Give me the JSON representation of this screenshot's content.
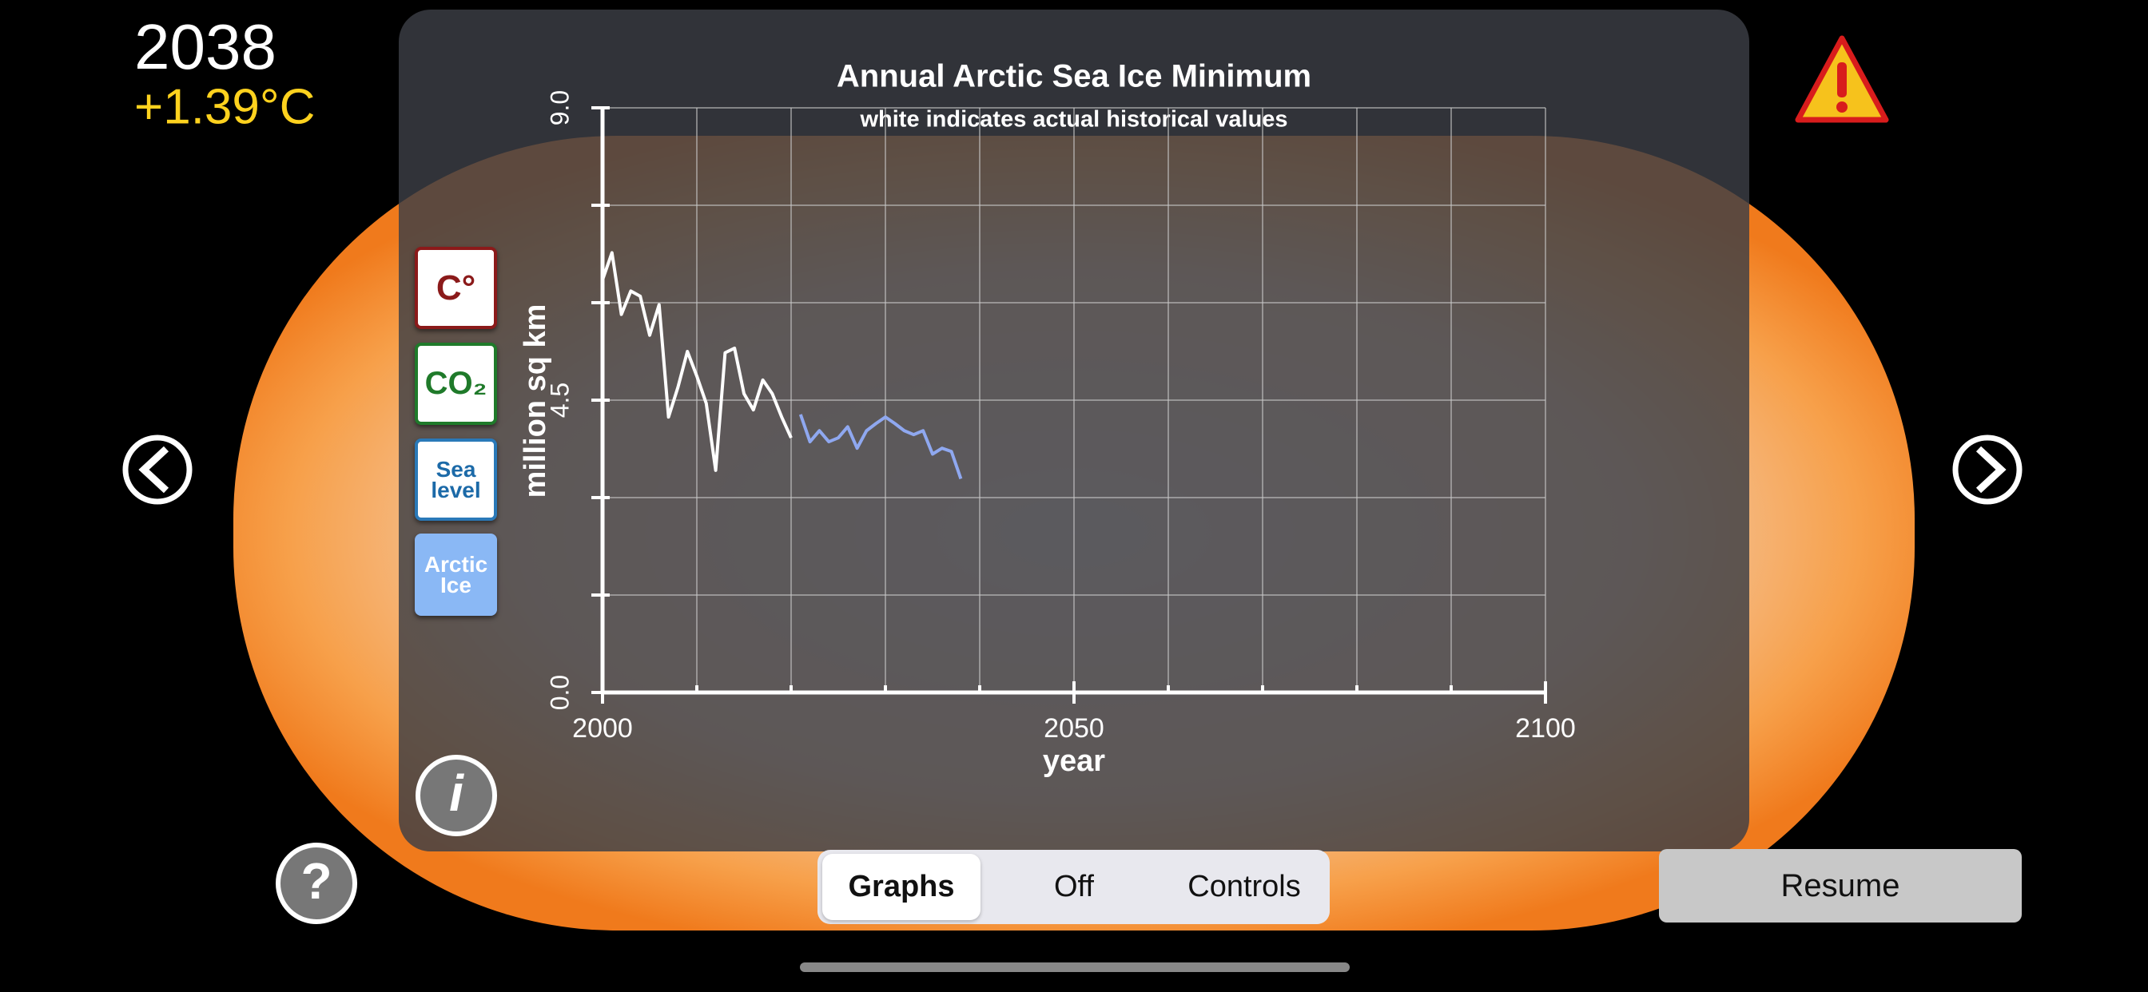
{
  "status": {
    "year": "2038",
    "temperature": "+1.39°C"
  },
  "side_buttons": [
    "C°",
    "CO₂",
    "Sea level",
    "Arctic Ice"
  ],
  "segmented_control": {
    "options": [
      "Graphs",
      "Off",
      "Controls"
    ],
    "selected_index": 0
  },
  "resume_button": "Resume",
  "chart_data": {
    "type": "line",
    "title": "Annual Arctic Sea Ice Minimum",
    "subtitle": "white indicates actual historical values",
    "x_label": "year",
    "y_label": "million sq km",
    "xlim": [
      2000,
      2100
    ],
    "ylim": [
      0,
      9
    ],
    "xticks": [
      2000,
      {
        "value": 2010,
        "label": null
      },
      {
        "value": 2020,
        "label": null
      },
      {
        "value": 2030,
        "label": null
      },
      {
        "value": 2040,
        "label": null
      },
      2050,
      {
        "value": 2060,
        "label": null
      },
      {
        "value": 2070,
        "label": null
      },
      {
        "value": 2080,
        "label": null
      },
      {
        "value": 2090,
        "label": null
      },
      2100
    ],
    "yticks": [
      {
        "value": 0,
        "label": "0.0"
      },
      {
        "value": 1.5,
        "label": null
      },
      {
        "value": 3,
        "label": null
      },
      {
        "value": 4.5,
        "label": "4.5"
      },
      {
        "value": 6,
        "label": null
      },
      {
        "value": 7.5,
        "label": null
      },
      {
        "value": 9,
        "label": "9.0"
      }
    ],
    "grid": true,
    "series": [
      {
        "color": "#ffffff",
        "x": [
          2000,
          2001,
          2002,
          2003,
          2004,
          2005,
          2006,
          2007,
          2008,
          2009,
          2010,
          2011,
          2012,
          2013,
          2014,
          2015,
          2016,
          2017,
          2018,
          2019,
          2020
        ],
        "values": [
          6.35,
          6.77,
          5.82,
          6.18,
          6.1,
          5.5,
          5.97,
          4.24,
          4.7,
          5.25,
          4.87,
          4.45,
          3.42,
          5.23,
          5.3,
          4.6,
          4.35,
          4.81,
          4.6,
          4.24,
          3.92
        ]
      },
      {
        "color": "#8fa8f0",
        "x": [
          2021,
          2022,
          2023,
          2024,
          2025,
          2026,
          2027,
          2028,
          2029,
          2030,
          2031,
          2032,
          2033,
          2034,
          2035,
          2036,
          2037,
          2038
        ],
        "values": [
          4.28,
          3.86,
          4.03,
          3.86,
          3.92,
          4.09,
          3.76,
          4.03,
          4.14,
          4.24,
          4.14,
          4.03,
          3.97,
          4.03,
          3.67,
          3.76,
          3.71,
          3.29
        ]
      }
    ]
  }
}
